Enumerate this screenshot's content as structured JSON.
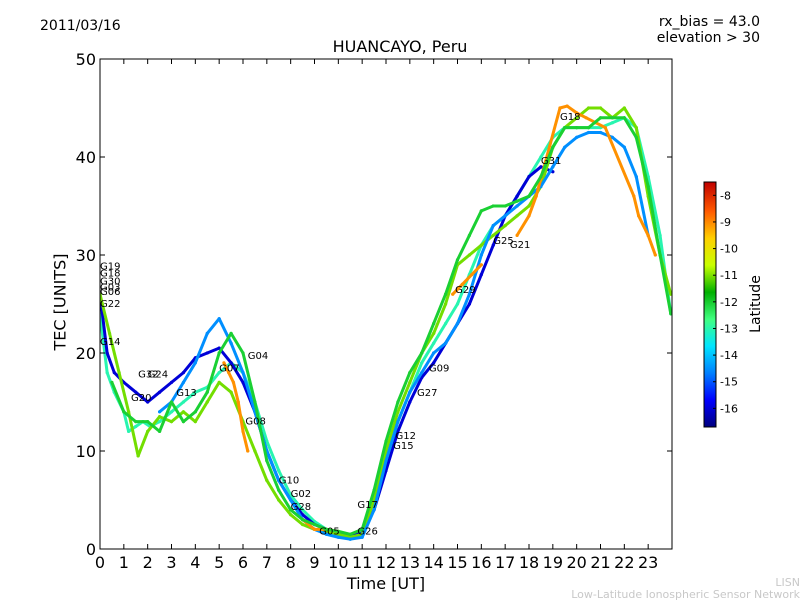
{
  "date": "2011/03/16",
  "rx_bias": "rx_bias = 43.0",
  "elevation": "elevation > 30",
  "branding": {
    "short": "LISN",
    "long": "Low-Latitude Ionospheric Sensor Network"
  },
  "chart_data": {
    "type": "scatter",
    "title": "HUANCAYO, Peru",
    "xlabel": "Time [UT]",
    "ylabel": "TEC [UNITS]",
    "xlim": [
      0,
      24
    ],
    "ylim": [
      0,
      50
    ],
    "x_ticks": [
      0,
      1,
      2,
      3,
      4,
      5,
      6,
      7,
      8,
      9,
      10,
      11,
      12,
      13,
      14,
      15,
      16,
      17,
      18,
      19,
      20,
      21,
      22,
      23
    ],
    "y_ticks": [
      0,
      10,
      20,
      30,
      40,
      50
    ],
    "colorbar": {
      "label": "Latitude",
      "range": [
        -16.7,
        -7.5
      ],
      "ticks": [
        -8,
        -9,
        -10,
        -11,
        -12,
        -13,
        -14,
        -15,
        -16
      ],
      "colormap": [
        "#00007f",
        "#0000ff",
        "#0080ff",
        "#00e5ff",
        "#40ff80",
        "#00b000",
        "#c8ff00",
        "#ffd000",
        "#ff5a00",
        "#c00000"
      ]
    },
    "satellite_labels": [
      {
        "name": "G19",
        "x": 0.0,
        "y": 28.5
      },
      {
        "name": "G18",
        "x": 0.0,
        "y": 27.8
      },
      {
        "name": "G30",
        "x": 0.0,
        "y": 27.0
      },
      {
        "name": "G03",
        "x": 0.0,
        "y": 26.4
      },
      {
        "name": "G06",
        "x": 0.0,
        "y": 25.9
      },
      {
        "name": "G22",
        "x": 0.0,
        "y": 24.7
      },
      {
        "name": "G14",
        "x": 0.0,
        "y": 20.8
      },
      {
        "name": "G20",
        "x": 1.3,
        "y": 15.1
      },
      {
        "name": "G32",
        "x": 1.6,
        "y": 17.5
      },
      {
        "name": "G24",
        "x": 2.0,
        "y": 17.5
      },
      {
        "name": "G13",
        "x": 3.2,
        "y": 15.6
      },
      {
        "name": "G07",
        "x": 5.0,
        "y": 18.1
      },
      {
        "name": "G04",
        "x": 6.2,
        "y": 19.4
      },
      {
        "name": "G08",
        "x": 6.1,
        "y": 12.7
      },
      {
        "name": "G10",
        "x": 7.5,
        "y": 6.7
      },
      {
        "name": "G02",
        "x": 8.0,
        "y": 5.3
      },
      {
        "name": "G28",
        "x": 8.0,
        "y": 4.0
      },
      {
        "name": "G05",
        "x": 9.2,
        "y": 1.5
      },
      {
        "name": "G17",
        "x": 10.8,
        "y": 4.2
      },
      {
        "name": "G26",
        "x": 10.8,
        "y": 1.5
      },
      {
        "name": "G12",
        "x": 12.4,
        "y": 11.2
      },
      {
        "name": "G15",
        "x": 12.3,
        "y": 10.2
      },
      {
        "name": "G27",
        "x": 13.3,
        "y": 15.6
      },
      {
        "name": "G09",
        "x": 13.8,
        "y": 18.1
      },
      {
        "name": "G29",
        "x": 14.9,
        "y": 26.1
      },
      {
        "name": "G25",
        "x": 16.5,
        "y": 31.1
      },
      {
        "name": "G21",
        "x": 17.2,
        "y": 30.7
      },
      {
        "name": "G31",
        "x": 18.5,
        "y": 39.3
      },
      {
        "name": "G18",
        "x": 19.3,
        "y": 43.8
      }
    ],
    "series": [
      {
        "lat": -13.0,
        "x": [
          0,
          0.3,
          0.6,
          1.0,
          1.2,
          1.5,
          1.8,
          2.1,
          2.5,
          3.0,
          3.5,
          4.0,
          4.5,
          5.0,
          5.5,
          6.0,
          6.5,
          7.0,
          7.5,
          8.0,
          8.5,
          9.0,
          9.5,
          10.0,
          10.5,
          11.0,
          11.5,
          12.0,
          12.5,
          13.0,
          13.5,
          14.0,
          14.5,
          15.0,
          15.5,
          16.0,
          16.5,
          17.0,
          17.5,
          18.0,
          18.5,
          19.0,
          19.5,
          20.0,
          20.5,
          21.0,
          21.5,
          22.0,
          22.5,
          23.0,
          23.5,
          23.95
        ],
        "y": [
          24,
          18,
          16,
          14,
          12,
          12.5,
          13,
          12.5,
          13,
          14,
          15,
          16,
          16.5,
          18,
          19,
          18,
          15,
          11,
          8,
          5.5,
          4,
          2.8,
          2,
          1.5,
          1.3,
          1.8,
          5,
          9,
          13,
          16,
          19,
          21,
          23,
          25,
          28,
          31,
          33,
          34,
          36,
          38,
          40,
          42,
          43,
          43,
          43,
          43,
          43.5,
          44,
          43,
          38,
          32,
          24
        ]
      },
      {
        "lat": -16.0,
        "x": [
          0,
          0.3,
          0.6,
          1.0,
          1.5,
          2.0,
          2.5,
          3.0,
          3.5,
          4.0,
          4.5,
          5.0,
          5.5,
          6.0,
          6.5,
          7.0,
          7.5,
          8.0,
          8.5,
          9.0,
          9.5,
          10.0,
          10.5,
          11.0,
          11.5,
          12.0,
          12.5,
          13.0,
          13.5,
          14.0,
          14.5,
          15.0,
          15.5,
          16.0,
          16.5,
          17.0,
          17.5,
          18.0,
          18.5,
          19.0
        ],
        "y": [
          26,
          20,
          18,
          17,
          16,
          15,
          16,
          17,
          18,
          19.5,
          20,
          20.5,
          19,
          17,
          14,
          10,
          7,
          5,
          3.5,
          2.5,
          2,
          1.5,
          1.3,
          1.6,
          4,
          8,
          12,
          15,
          17.5,
          19,
          21,
          23,
          25,
          28,
          31,
          34,
          36,
          38,
          39,
          38.5
        ]
      },
      {
        "lat": -11.0,
        "x": [
          0,
          0.4,
          0.8,
          1.2,
          1.6,
          2.0,
          2.5,
          3.0,
          3.5,
          4.0,
          4.5,
          5.0,
          5.5,
          6.0,
          6.5,
          7.0,
          7.5,
          8.0,
          8.5,
          9.0,
          9.5,
          10.0,
          10.5,
          11.0,
          11.5,
          12.0,
          12.5,
          13.0,
          13.5,
          14.0,
          14.5,
          15.0,
          15.5,
          16.0,
          16.5,
          17.0,
          17.5,
          18.0,
          18.5,
          19.0,
          19.5,
          20.0,
          20.5,
          21.0,
          21.5,
          22.0,
          22.5,
          23.0,
          23.5,
          23.95
        ],
        "y": [
          26,
          22,
          18,
          14,
          9.5,
          12,
          13.5,
          13,
          14,
          13,
          15,
          17,
          16,
          13,
          10,
          7,
          5,
          3.5,
          2.5,
          2,
          1.8,
          1.5,
          1.2,
          1.5,
          5,
          10,
          14,
          17,
          20,
          22,
          25,
          29,
          30,
          31,
          32,
          33,
          34,
          35,
          37,
          41,
          43,
          44,
          45,
          45,
          44,
          45,
          43,
          36,
          30,
          26
        ]
      },
      {
        "lat": -14.5,
        "x": [
          2.5,
          3.0,
          3.5,
          4.0,
          4.5,
          5.0,
          5.5,
          6.0,
          6.5,
          7.0,
          7.5,
          8.0,
          8.5,
          9.0,
          9.5,
          10.0,
          10.5,
          11.0,
          11.5,
          12.0,
          12.5,
          13.0,
          13.5,
          14.0,
          14.5,
          15.0,
          15.5,
          16.0,
          16.5,
          17.0,
          17.5,
          18.0,
          18.5,
          19.0,
          19.5,
          20.0,
          20.5,
          21.0,
          21.5,
          22.0,
          22.5,
          23.0
        ],
        "y": [
          14,
          15,
          17,
          19,
          22,
          23.5,
          21,
          18,
          14,
          10,
          7,
          5,
          3,
          2,
          1.5,
          1.2,
          1,
          1.2,
          4,
          9,
          13,
          16,
          18,
          20,
          21,
          23,
          26,
          30,
          33,
          34,
          35,
          36,
          37,
          39,
          41,
          42,
          42.5,
          42.5,
          42,
          41,
          38,
          32
        ]
      },
      {
        "lat": -9.0,
        "x": [
          5.2,
          5.4,
          5.6,
          5.8,
          6.0,
          6.2,
          8.5,
          9.0,
          9.5,
          10.0,
          14.8,
          15.2,
          15.6,
          16.0,
          17.5,
          18.0,
          18.3,
          19.3,
          19.6,
          20.0,
          20.4,
          20.8,
          21.2,
          22.4,
          22.6,
          23.0,
          23.3
        ],
        "y": [
          19,
          18,
          17,
          15,
          12,
          10,
          3,
          2,
          2,
          1.8,
          26,
          27,
          28,
          29,
          32,
          34,
          36,
          45,
          45.2,
          44.5,
          44,
          43.5,
          43,
          36,
          34,
          32,
          30
        ]
      },
      {
        "lat": -12.0,
        "x": [
          0.5,
          1.0,
          1.5,
          2.0,
          2.5,
          3.0,
          3.5,
          4.0,
          4.5,
          5.0,
          5.5,
          6.0,
          6.5,
          7.0,
          7.5,
          8.0,
          8.5,
          9.0,
          9.5,
          10.0,
          10.5,
          11.0,
          11.5,
          12.0,
          12.5,
          13.0,
          13.5,
          14.0,
          14.5,
          15.0,
          15.5,
          16.0,
          16.5,
          17.0,
          17.5,
          18.0,
          18.5,
          19.0,
          19.5,
          20.0,
          20.5,
          21.0,
          21.5,
          22.0,
          22.5,
          23.0,
          23.5,
          23.95
        ],
        "y": [
          17,
          14,
          13,
          13,
          12,
          15,
          13,
          14,
          16,
          20,
          22,
          20,
          15,
          9,
          6,
          4,
          3,
          2.5,
          2,
          1.8,
          1.5,
          2,
          6,
          11,
          15,
          18,
          20,
          23,
          26,
          29.5,
          32,
          34.5,
          35,
          35,
          35.5,
          36,
          38,
          41,
          43,
          43,
          43,
          44,
          44,
          44,
          42,
          37,
          30,
          24
        ]
      }
    ]
  }
}
